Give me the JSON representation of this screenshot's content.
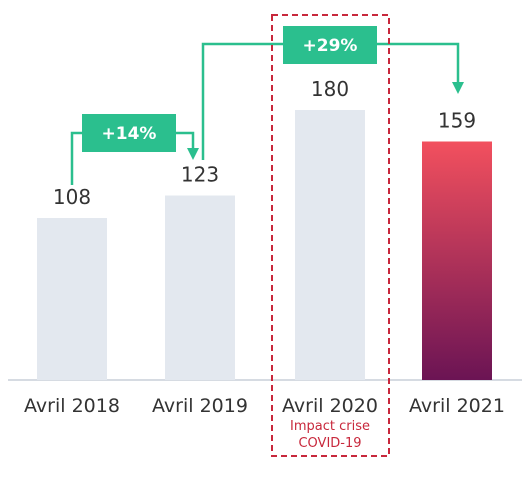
{
  "colors": {
    "bar_default": "#e3e8ef",
    "bar_highlight_top": "#f2505e",
    "bar_highlight_bottom": "#6b1454",
    "accent": "#2bbf8e",
    "covid_red": "#c8283c",
    "axis": "#d6dbe2",
    "text": "#333333"
  },
  "chart_data": {
    "type": "bar",
    "categories": [
      "Avril 2018",
      "Avril 2019",
      "Avril 2020",
      "Avril 2021"
    ],
    "values": [
      108,
      123,
      180,
      159
    ],
    "value_labels": [
      "108",
      "123",
      "180",
      "159"
    ],
    "highlight_index": 3,
    "title": "",
    "xlabel": "",
    "ylabel": "",
    "grid": false,
    "annotations": [
      {
        "type": "growth",
        "text": "+14%",
        "from": "Avril 2018",
        "to": "Avril 2019"
      },
      {
        "type": "growth",
        "text": "+29%",
        "from": "Avril 2019",
        "to": "Avril 2021"
      },
      {
        "type": "highlight-box",
        "target": "Avril 2020",
        "text": [
          "Impact crise",
          "COVID-19"
        ]
      }
    ]
  }
}
